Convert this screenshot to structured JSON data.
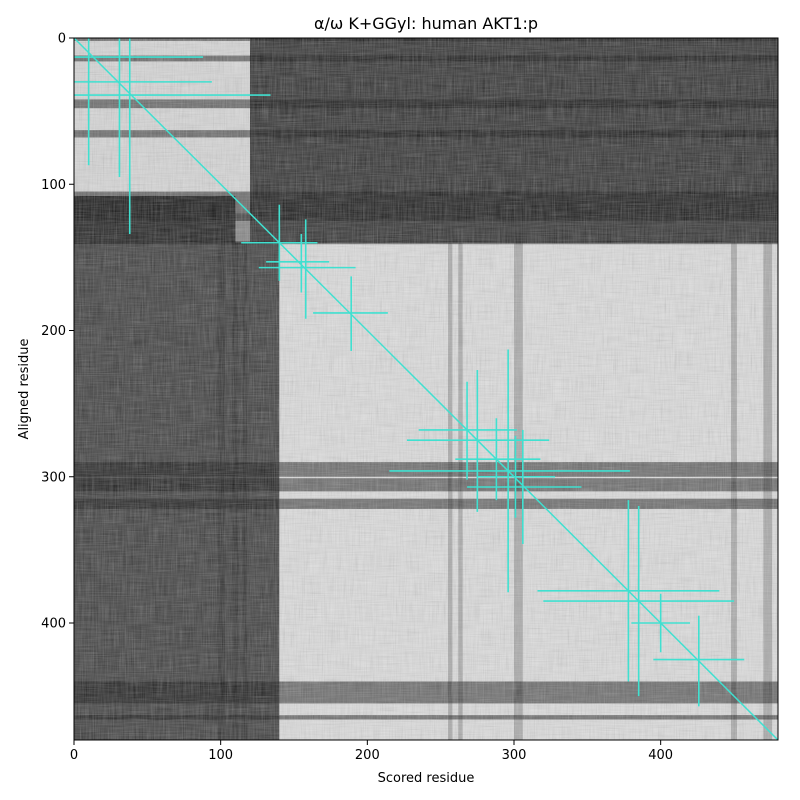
{
  "chart_data": {
    "type": "heatmap",
    "title": "α/ω K+GGyl: human AKT1:p",
    "xlabel": "Scored residue",
    "ylabel": "Aligned residue",
    "xlim": [
      0,
      480
    ],
    "ylim": [
      480,
      0
    ],
    "x_ticks": [
      0,
      100,
      200,
      300,
      400
    ],
    "y_ticks": [
      0,
      100,
      200,
      300,
      400
    ],
    "colormap": "grayscale",
    "grid": false,
    "diagonal": {
      "from": [
        0,
        0
      ],
      "to": [
        480,
        480
      ],
      "color": "#40e0d0"
    },
    "crosses_color": "#40e0d0",
    "crosses": [
      {
        "x": 10,
        "y": 13,
        "x_range": [
          0,
          88
        ],
        "y_range": [
          0,
          87
        ]
      },
      {
        "x": 31,
        "y": 30,
        "x_range": [
          0,
          94
        ],
        "y_range": [
          0,
          95
        ]
      },
      {
        "x": 38,
        "y": 39,
        "x_range": [
          0,
          134
        ],
        "y_range": [
          0,
          134
        ]
      },
      {
        "x": 140,
        "y": 140,
        "x_range": [
          114,
          166
        ],
        "y_range": [
          114,
          166
        ]
      },
      {
        "x": 155,
        "y": 153,
        "x_range": [
          131,
          174
        ],
        "y_range": [
          134,
          174
        ]
      },
      {
        "x": 158,
        "y": 157,
        "x_range": [
          126,
          192
        ],
        "y_range": [
          124,
          192
        ]
      },
      {
        "x": 189,
        "y": 188,
        "x_range": [
          163,
          214
        ],
        "y_range": [
          163,
          214
        ]
      },
      {
        "x": 268,
        "y": 268,
        "x_range": [
          235,
          302
        ],
        "y_range": [
          235,
          302
        ]
      },
      {
        "x": 275,
        "y": 275,
        "x_range": [
          227,
          324
        ],
        "y_range": [
          227,
          324
        ]
      },
      {
        "x": 288,
        "y": 288,
        "x_range": [
          260,
          318
        ],
        "y_range": [
          260,
          316
        ]
      },
      {
        "x": 296,
        "y": 296,
        "x_range": [
          215,
          379
        ],
        "y_range": [
          213,
          379
        ]
      },
      {
        "x": 301,
        "y": 300,
        "x_range": [
          275,
          328
        ],
        "y_range": [
          272,
          328
        ]
      },
      {
        "x": 306,
        "y": 307,
        "x_range": [
          268,
          346
        ],
        "y_range": [
          268,
          346
        ]
      },
      {
        "x": 378,
        "y": 378,
        "x_range": [
          316,
          440
        ],
        "y_range": [
          316,
          440
        ]
      },
      {
        "x": 385,
        "y": 385,
        "x_range": [
          320,
          450
        ],
        "y_range": [
          320,
          450
        ]
      },
      {
        "x": 400,
        "y": 400,
        "x_range": [
          380,
          420
        ],
        "y_range": [
          380,
          420
        ]
      },
      {
        "x": 426,
        "y": 425,
        "x_range": [
          395,
          457
        ],
        "y_range": [
          395,
          457
        ]
      }
    ],
    "bands": {
      "dark_rows": [
        [
          0,
          2
        ],
        [
          12,
          16
        ],
        [
          42,
          48
        ],
        [
          63,
          68
        ],
        [
          105,
          125
        ],
        [
          139,
          141
        ],
        [
          290,
          300
        ],
        [
          301,
          310
        ],
        [
          315,
          322
        ],
        [
          440,
          455
        ],
        [
          463,
          466
        ]
      ],
      "dark_cols": [
        [
          98,
          103
        ],
        [
          108,
          112
        ],
        [
          115,
          118
        ],
        [
          255,
          258
        ],
        [
          262,
          265
        ],
        [
          300,
          306
        ],
        [
          448,
          452
        ],
        [
          470,
          476
        ]
      ],
      "blocks": [
        {
          "x": [
            0,
            120
          ],
          "y": [
            0,
            120
          ],
          "level": 0.85
        },
        {
          "x": [
            120,
            480
          ],
          "y": [
            0,
            140
          ],
          "level": 0.15
        },
        {
          "x": [
            0,
            140
          ],
          "y": [
            140,
            480
          ],
          "level": 0.2
        },
        {
          "x": [
            0,
            110
          ],
          "y": [
            108,
            140
          ],
          "level": 0.08
        },
        {
          "x": [
            140,
            480
          ],
          "y": [
            140,
            480
          ],
          "level": 0.88
        }
      ]
    }
  }
}
